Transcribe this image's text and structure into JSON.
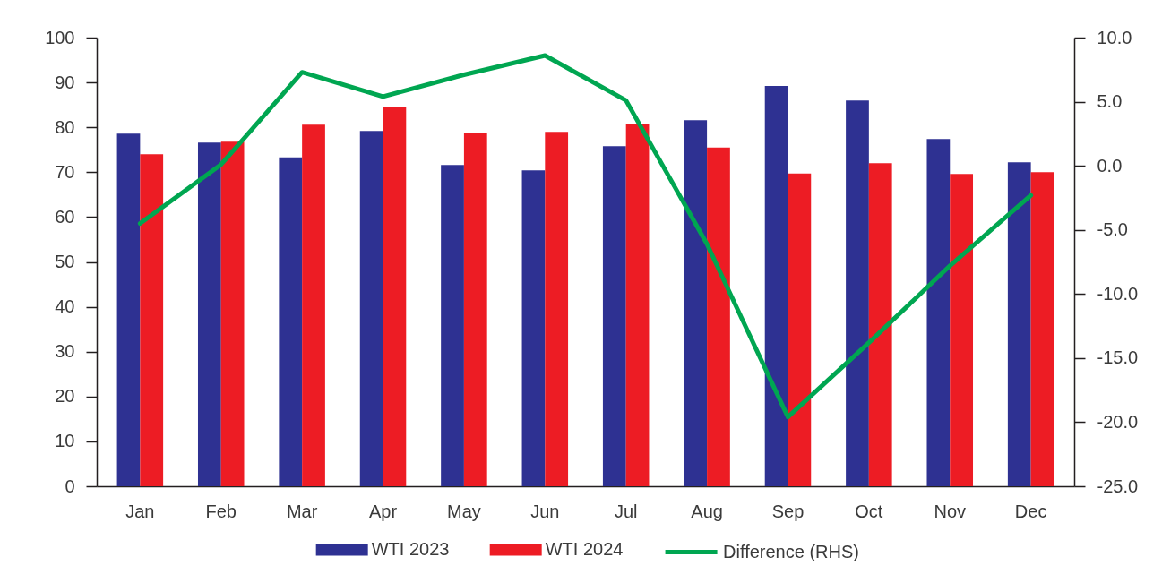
{
  "chart_data": {
    "type": "bar",
    "categories": [
      "Jan",
      "Feb",
      "Mar",
      "Apr",
      "May",
      "Jun",
      "Jul",
      "Aug",
      "Sep",
      "Oct",
      "Nov",
      "Dec"
    ],
    "series": [
      {
        "name": "WTI 2023",
        "color": "#2e3192",
        "values": [
          78.6,
          76.6,
          73.3,
          79.2,
          71.6,
          70.4,
          75.8,
          81.6,
          89.2,
          86.0,
          77.4,
          72.2
        ]
      },
      {
        "name": "WTI 2024",
        "color": "#ed1c24",
        "values": [
          74.0,
          76.8,
          80.6,
          84.6,
          78.7,
          79.0,
          80.8,
          75.5,
          69.7,
          72.0,
          69.6,
          70.0
        ]
      },
      {
        "name": "Difference (RHS)",
        "type": "line",
        "axis": "y2",
        "color": "#00a651",
        "values": [
          -4.5,
          0.1,
          7.3,
          5.4,
          7.1,
          8.6,
          5.1,
          -6.1,
          -19.6,
          -13.8,
          -7.8,
          -2.3
        ]
      }
    ],
    "ylim": [
      0,
      100
    ],
    "yticks": [
      0,
      10,
      20,
      30,
      40,
      50,
      60,
      70,
      80,
      90,
      100
    ],
    "y2lim": [
      -25,
      10
    ],
    "y2ticks": [
      {
        "value": -25,
        "label": "-25.0"
      },
      {
        "value": -20,
        "label": "-20.0"
      },
      {
        "value": -15,
        "label": "-15.0"
      },
      {
        "value": -10,
        "label": "-10.0"
      },
      {
        "value": -5,
        "label": "-5.0"
      },
      {
        "value": 0,
        "label": "0.0"
      },
      {
        "value": 5,
        "label": "5.0"
      },
      {
        "value": 10,
        "label": "10.0"
      }
    ],
    "grid": false,
    "legend": "bottom"
  }
}
